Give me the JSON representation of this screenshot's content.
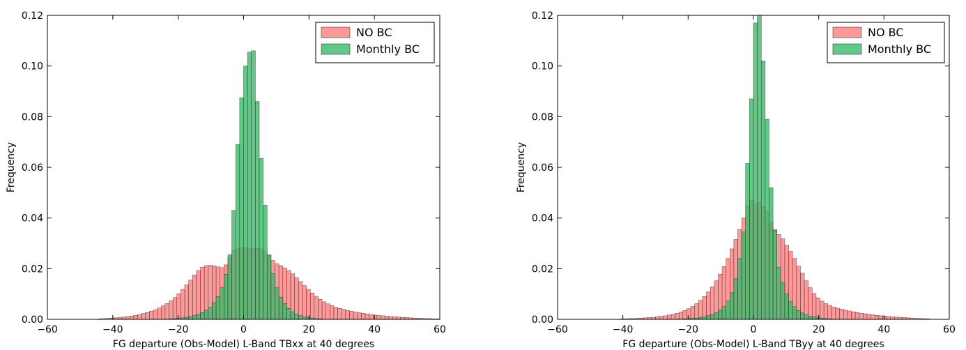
{
  "chart_data": [
    {
      "type": "bar",
      "title": "",
      "xlabel": "FG departure (Obs-Model) L-Band TBxx at 40 degrees",
      "ylabel": "Frequency",
      "xlim": [
        -60,
        60
      ],
      "ylim": [
        0,
        0.12
      ],
      "xticks": [
        -60,
        -40,
        -20,
        0,
        20,
        40,
        60
      ],
      "yticks": [
        0.0,
        0.02,
        0.04,
        0.06,
        0.08,
        0.1,
        0.12
      ],
      "xtick_labels": [
        "−60",
        "−40",
        "−20",
        "0",
        "20",
        "40",
        "60"
      ],
      "ytick_labels": [
        "0.00",
        "0.02",
        "0.04",
        "0.06",
        "0.08",
        "0.10",
        "0.12"
      ],
      "grid": false,
      "legend_position": "top-right",
      "bin_width": 1.2,
      "series": [
        {
          "name": "NO BC",
          "color": "#ff7f7f",
          "x": [
            -44.4,
            -43.2,
            -42,
            -40.8,
            -39.6,
            -38.4,
            -37.2,
            -36,
            -34.8,
            -33.6,
            -32.4,
            -31.2,
            -30,
            -28.8,
            -27.6,
            -26.4,
            -25.2,
            -24,
            -22.8,
            -21.6,
            -20.4,
            -19.2,
            -18,
            -16.8,
            -15.6,
            -14.4,
            -13.2,
            -12,
            -10.8,
            -9.6,
            -8.4,
            -7.2,
            -6,
            -4.8,
            -3.6,
            -2.4,
            -1.2,
            0,
            1.2,
            2.4,
            3.6,
            4.8,
            6,
            7.2,
            8.4,
            9.6,
            10.8,
            12,
            13.2,
            14.4,
            15.6,
            16.8,
            18,
            19.2,
            20.4,
            21.6,
            22.8,
            24,
            25.2,
            26.4,
            27.6,
            28.8,
            30,
            31.2,
            32.4,
            33.6,
            34.8,
            36,
            37.2,
            38.4,
            39.6,
            40.8,
            42,
            43.2,
            44.4,
            45.6,
            46.8,
            48,
            49.2,
            50.4,
            51.6,
            52.8,
            54,
            55.2,
            56.4,
            57.6,
            58.8
          ],
          "values": [
            0.0002,
            0.0003,
            0.0004,
            0.0005,
            0.0006,
            0.0007,
            0.0009,
            0.0011,
            0.0013,
            0.0016,
            0.0019,
            0.0023,
            0.0027,
            0.0032,
            0.0038,
            0.0045,
            0.0053,
            0.0062,
            0.0073,
            0.0086,
            0.0101,
            0.0118,
            0.0136,
            0.0155,
            0.0175,
            0.0193,
            0.0206,
            0.0212,
            0.0213,
            0.0211,
            0.0207,
            0.0204,
            0.0215,
            0.0245,
            0.0272,
            0.0281,
            0.0282,
            0.0282,
            0.0281,
            0.028,
            0.028,
            0.0278,
            0.027,
            0.0252,
            0.0232,
            0.022,
            0.0212,
            0.0203,
            0.0193,
            0.018,
            0.0165,
            0.0149,
            0.0133,
            0.0118,
            0.0104,
            0.0091,
            0.0079,
            0.0069,
            0.0061,
            0.0054,
            0.0048,
            0.0043,
            0.0039,
            0.0035,
            0.0032,
            0.0029,
            0.0026,
            0.0024,
            0.0021,
            0.0019,
            0.0017,
            0.0015,
            0.0014,
            0.0012,
            0.0011,
            0.001,
            0.0009,
            0.0008,
            0.0007,
            0.0006,
            0.0005,
            0.0004,
            0.0004,
            0.0003,
            0.0003,
            0.0002,
            0.0002
          ]
        },
        {
          "name": "Monthly BC",
          "color": "#3cb96a",
          "x": [
            -24,
            -22.8,
            -21.6,
            -20.4,
            -19.2,
            -18,
            -16.8,
            -15.6,
            -14.4,
            -13.2,
            -12,
            -10.8,
            -9.6,
            -8.4,
            -7.2,
            -6,
            -4.8,
            -3.6,
            -2.4,
            -1.2,
            0,
            1.2,
            2.4,
            3.6,
            4.8,
            6,
            7.2,
            8.4,
            9.6,
            10.8,
            12,
            13.2,
            14.4,
            15.6,
            16.8,
            18,
            19.2,
            20.4,
            21.6,
            22.8,
            24
          ],
          "values": [
            0.0001,
            0.0002,
            0.0003,
            0.0004,
            0.0006,
            0.0008,
            0.0011,
            0.0015,
            0.002,
            0.0027,
            0.0036,
            0.0048,
            0.0066,
            0.009,
            0.0125,
            0.0178,
            0.0255,
            0.043,
            0.069,
            0.0875,
            0.1,
            0.1055,
            0.106,
            0.086,
            0.0635,
            0.045,
            0.0255,
            0.018,
            0.0125,
            0.0087,
            0.0062,
            0.0043,
            0.003,
            0.0021,
            0.0015,
            0.001,
            0.0007,
            0.0005,
            0.0003,
            0.0002,
            0.0001
          ]
        }
      ]
    },
    {
      "type": "bar",
      "title": "",
      "xlabel": "FG departure (Obs-Model) L-Band TByy at 40 degrees",
      "ylabel": "Frequency",
      "xlim": [
        -60,
        60
      ],
      "ylim": [
        0,
        0.12
      ],
      "xticks": [
        -60,
        -40,
        -20,
        0,
        20,
        40,
        60
      ],
      "yticks": [
        0.0,
        0.02,
        0.04,
        0.06,
        0.08,
        0.1,
        0.12
      ],
      "xtick_labels": [
        "−60",
        "−40",
        "−20",
        "0",
        "20",
        "40",
        "60"
      ],
      "ytick_labels": [
        "0.00",
        "0.02",
        "0.04",
        "0.06",
        "0.08",
        "0.10",
        "0.12"
      ],
      "grid": false,
      "legend_position": "top-right",
      "bin_width": 1.2,
      "series": [
        {
          "name": "NO BC",
          "color": "#ff7f7f",
          "x": [
            -40.8,
            -39.6,
            -38.4,
            -37.2,
            -36,
            -34.8,
            -33.6,
            -32.4,
            -31.2,
            -30,
            -28.8,
            -27.6,
            -26.4,
            -25.2,
            -24,
            -22.8,
            -21.6,
            -20.4,
            -19.2,
            -18,
            -16.8,
            -15.6,
            -14.4,
            -13.2,
            -12,
            -10.8,
            -9.6,
            -8.4,
            -7.2,
            -6,
            -4.8,
            -3.6,
            -2.4,
            -1.2,
            0,
            1.2,
            2.4,
            3.6,
            4.8,
            6,
            7.2,
            8.4,
            9.6,
            10.8,
            12,
            13.2,
            14.4,
            15.6,
            16.8,
            18,
            19.2,
            20.4,
            21.6,
            22.8,
            24,
            25.2,
            26.4,
            27.6,
            28.8,
            30,
            31.2,
            32.4,
            33.6,
            34.8,
            36,
            37.2,
            38.4,
            39.6,
            40.8,
            42,
            43.2,
            44.4,
            45.6,
            46.8,
            48,
            49.2,
            50.4,
            51.6,
            52.8
          ],
          "values": [
            0.0002,
            0.0002,
            0.0003,
            0.0003,
            0.0004,
            0.0005,
            0.0006,
            0.0007,
            0.0008,
            0.001,
            0.0012,
            0.0014,
            0.0017,
            0.002,
            0.0024,
            0.0029,
            0.0035,
            0.0042,
            0.0051,
            0.0062,
            0.0075,
            0.009,
            0.0108,
            0.0128,
            0.0152,
            0.0178,
            0.0208,
            0.024,
            0.0278,
            0.0315,
            0.0355,
            0.04,
            0.0445,
            0.047,
            0.0455,
            0.0462,
            0.0445,
            0.0425,
            0.0385,
            0.0355,
            0.0335,
            0.0318,
            0.0292,
            0.0268,
            0.024,
            0.021,
            0.0182,
            0.0152,
            0.0125,
            0.0102,
            0.0085,
            0.0072,
            0.0062,
            0.0055,
            0.0049,
            0.0044,
            0.004,
            0.0036,
            0.0033,
            0.003,
            0.0027,
            0.0024,
            0.0022,
            0.002,
            0.0018,
            0.0016,
            0.0014,
            0.0013,
            0.0011,
            0.001,
            0.0009,
            0.0008,
            0.0007,
            0.0006,
            0.0005,
            0.0004,
            0.0003,
            0.0003,
            0.0002
          ]
        },
        {
          "name": "Monthly BC",
          "color": "#3cb96a",
          "x": [
            -24,
            -22.8,
            -21.6,
            -20.4,
            -19.2,
            -18,
            -16.8,
            -15.6,
            -14.4,
            -13.2,
            -12,
            -10.8,
            -9.6,
            -8.4,
            -7.2,
            -6,
            -4.8,
            -3.6,
            -2.4,
            -1.2,
            0,
            1.2,
            2.4,
            3.6,
            4.8,
            6,
            7.2,
            8.4,
            9.6,
            10.8,
            12,
            13.2,
            14.4,
            15.6,
            16.8,
            18,
            19.2,
            20.4,
            21.6,
            22.8,
            24
          ],
          "values": [
            0.0001,
            0.0001,
            0.0002,
            0.0003,
            0.0004,
            0.0005,
            0.0007,
            0.001,
            0.0014,
            0.0019,
            0.0026,
            0.0036,
            0.005,
            0.0072,
            0.0105,
            0.016,
            0.024,
            0.0345,
            0.0615,
            0.087,
            0.117,
            0.1225,
            0.102,
            0.079,
            0.052,
            0.035,
            0.0205,
            0.0145,
            0.01,
            0.007,
            0.005,
            0.0035,
            0.0025,
            0.0018,
            0.0013,
            0.0009,
            0.0006,
            0.0004,
            0.0003,
            0.0002,
            0.0001
          ]
        }
      ]
    }
  ]
}
